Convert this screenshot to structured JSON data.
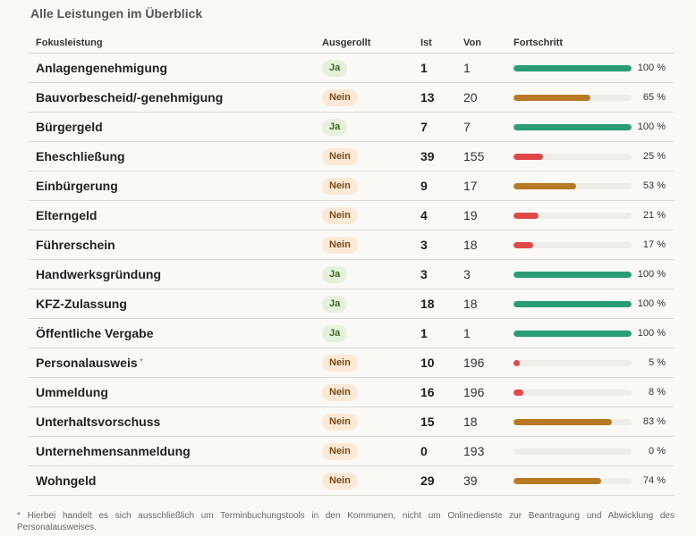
{
  "title": "Alle Leistungen im Überblick",
  "columns": {
    "name": "Fokusleistung",
    "rolled_out": "Ausgerollt",
    "ist": "Ist",
    "von": "Von",
    "progress": "Fortschritt"
  },
  "colors": {
    "complete": "#2a9d76",
    "medium": "#b87a24",
    "low": "#e04848",
    "track": "#efede7"
  },
  "rows": [
    {
      "name": "Anlagengenehmigung",
      "rolled_out": "Ja",
      "ist": "1",
      "von": "1",
      "pct": "100 %",
      "progress": 100
    },
    {
      "name": "Bauvorbescheid/-genehmigung",
      "rolled_out": "Nein",
      "ist": "13",
      "von": "20",
      "pct": "65 %",
      "progress": 65
    },
    {
      "name": "Bürgergeld",
      "rolled_out": "Ja",
      "ist": "7",
      "von": "7",
      "pct": "100 %",
      "progress": 100
    },
    {
      "name": "Eheschließung",
      "rolled_out": "Nein",
      "ist": "39",
      "von": "155",
      "pct": "25 %",
      "progress": 25
    },
    {
      "name": "Einbürgerung",
      "rolled_out": "Nein",
      "ist": "9",
      "von": "17",
      "pct": "53 %",
      "progress": 53
    },
    {
      "name": "Elterngeld",
      "rolled_out": "Nein",
      "ist": "4",
      "von": "19",
      "pct": "21 %",
      "progress": 21
    },
    {
      "name": "Führerschein",
      "rolled_out": "Nein",
      "ist": "3",
      "von": "18",
      "pct": "17 %",
      "progress": 17
    },
    {
      "name": "Handwerksgründung",
      "rolled_out": "Ja",
      "ist": "3",
      "von": "3",
      "pct": "100 %",
      "progress": 100
    },
    {
      "name": "KFZ-Zulassung",
      "rolled_out": "Ja",
      "ist": "18",
      "von": "18",
      "pct": "100 %",
      "progress": 100
    },
    {
      "name": "Öffentliche Vergabe",
      "rolled_out": "Ja",
      "ist": "1",
      "von": "1",
      "pct": "100 %",
      "progress": 100
    },
    {
      "name": "Personalausweis",
      "note_marker": "*",
      "rolled_out": "Nein",
      "ist": "10",
      "von": "196",
      "pct": "5 %",
      "progress": 5
    },
    {
      "name": "Ummeldung",
      "rolled_out": "Nein",
      "ist": "16",
      "von": "196",
      "pct": "8 %",
      "progress": 8
    },
    {
      "name": "Unterhaltsvorschuss",
      "rolled_out": "Nein",
      "ist": "15",
      "von": "18",
      "pct": "83 %",
      "progress": 83
    },
    {
      "name": "Unternehmensanmeldung",
      "rolled_out": "Nein",
      "ist": "0",
      "von": "193",
      "pct": "0 %",
      "progress": 0
    },
    {
      "name": "Wohngeld",
      "rolled_out": "Nein",
      "ist": "29",
      "von": "39",
      "pct": "74 %",
      "progress": 74
    }
  ],
  "footnote": "* Hierbei handelt es sich ausschließlich um Terminbuchungstools in den Kommunen, nicht um Onlinedienste zur Beantragung und Abwicklung des Personalausweises."
}
